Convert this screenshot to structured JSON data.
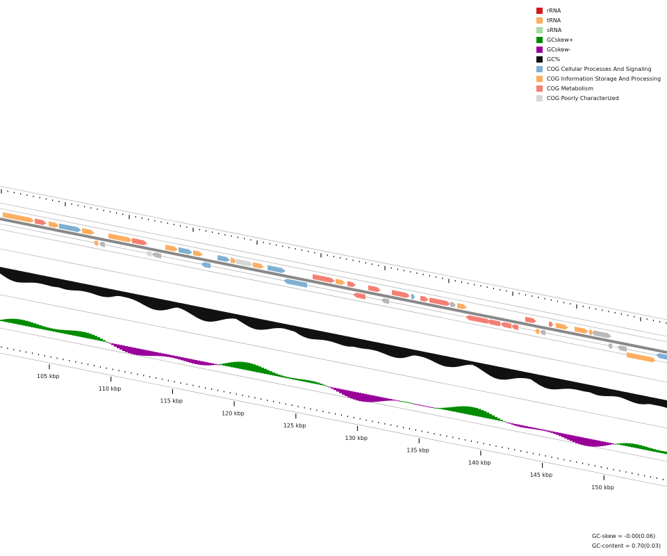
{
  "legend": {
    "items": [
      {
        "label": "rRNA",
        "color": "#d7191c",
        "icon": "rrna-swatch"
      },
      {
        "label": "tRNA",
        "color": "#fdae61",
        "icon": "trna-swatch"
      },
      {
        "label": "sRNA",
        "color": "#a6dba0",
        "icon": "srna-swatch"
      },
      {
        "label": "GCskew+",
        "color": "#008c00",
        "icon": "gcskew-pos-swatch"
      },
      {
        "label": "GCskew-",
        "color": "#990099",
        "icon": "gcskew-neg-swatch"
      },
      {
        "label": "GC%",
        "color": "#111111",
        "icon": "gc-content-swatch"
      },
      {
        "label": "COG Cellular Processes And Signaling",
        "color": "#7fb0d3",
        "icon": "cog-cellular-swatch"
      },
      {
        "label": "COG Information Storage And Processing",
        "color": "#fdae61",
        "icon": "cog-information-swatch"
      },
      {
        "label": "COG Metabolism",
        "color": "#f47f72",
        "icon": "cog-metabolism-swatch"
      },
      {
        "label": "COG Poorly Characterized",
        "color": "#d6d6d6",
        "icon": "cog-poorly-swatch"
      }
    ]
  },
  "scale": {
    "ticks": [
      {
        "label": "105 kbp"
      },
      {
        "label": "110 kbp"
      },
      {
        "label": "115 kbp"
      },
      {
        "label": "120 kbp"
      },
      {
        "label": "125 kbp"
      },
      {
        "label": "130 kbp"
      },
      {
        "label": "135 kbp"
      },
      {
        "label": "140 kbp"
      },
      {
        "label": "145 kbp"
      },
      {
        "label": "150 kbp"
      }
    ]
  },
  "stats": {
    "gc_skew": "GC-skew = -0.00(0.06)",
    "gc_content": "GC-content = 0.70(0.03)"
  },
  "colors": {
    "gcskew_pos": "#008c00",
    "gcskew_neg": "#990099",
    "gc": "#111111",
    "backbone": "#888888",
    "cog_cellular": "#7fb0d3",
    "cog_information": "#fdae61",
    "cog_metabolism": "#f47f72",
    "cog_poorly": "#d6d6d6",
    "other": "#b8b8b8"
  }
}
